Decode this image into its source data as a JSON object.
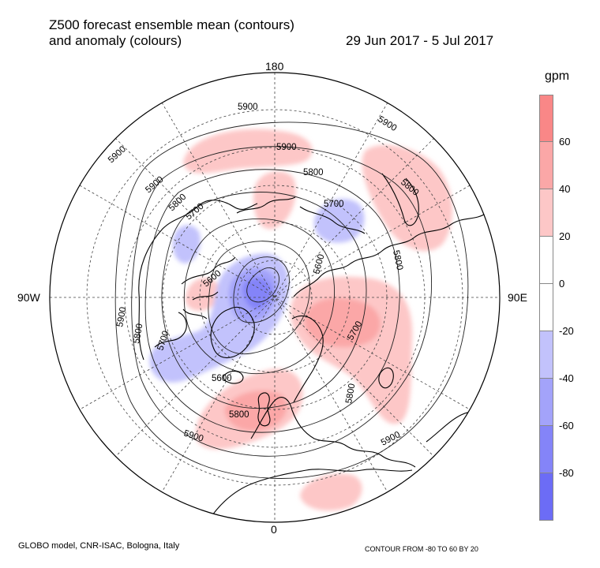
{
  "title": {
    "line1": "Z500 forecast ensemble mean (contours)",
    "line2": "and anomaly (colours)",
    "date_range": "29 Jun 2017 - 5 Jul 2017"
  },
  "longitude_labels": {
    "top": "180",
    "left": "90W",
    "right": "90E",
    "bottom": "0"
  },
  "colorbar": {
    "unit": "gpm",
    "tick_labels": [
      "60",
      "40",
      "20",
      "0",
      "-20",
      "-40",
      "-60",
      "-80"
    ],
    "colors": [
      "#f98787",
      "#fba7a7",
      "#fdc7c7",
      "#ffffff",
      "#ffffff",
      "#c2c2fc",
      "#a3a3fa",
      "#8484f8",
      "#6c6cf6"
    ]
  },
  "contour_labels": [
    "5900",
    "5900",
    "5900",
    "5900",
    "5900",
    "5900",
    "5900",
    "5900",
    "5800",
    "5800",
    "5800",
    "5800",
    "5800",
    "5800",
    "5700",
    "5700",
    "5700",
    "5700",
    "5600",
    "5600",
    "5600",
    "5800"
  ],
  "footer": {
    "model": "GLOBO model, CNR-ISAC, Bologna, Italy",
    "contour_info": "CONTOUR FROM -80 TO 60 BY 20"
  }
}
